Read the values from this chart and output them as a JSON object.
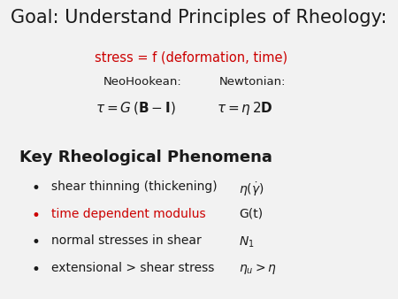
{
  "title": "Goal: Understand Principles of Rheology:",
  "title_fontsize": 15,
  "title_color": "#1a1a1a",
  "subtitle_red": "stress = f (deformation, time)",
  "subtitle_red_color": "#cc0000",
  "subtitle_red_fontsize": 10.5,
  "neohookean_label": "NeoHookean:",
  "newtonian_label": "Newtonian:",
  "section_title": "Key Rheological Phenomena",
  "section_title_fontsize": 13,
  "bullet_items": [
    "shear thinning (thickening)",
    "time dependent modulus",
    "normal stresses in shear",
    "extensional > shear stress"
  ],
  "bullet_colors": [
    "#1a1a1a",
    "#cc0000",
    "#1a1a1a",
    "#1a1a1a"
  ],
  "bullet_annotations": [
    "$\\eta(\\dot{\\gamma})$",
    "G(t)",
    "$N_1$",
    "$\\eta_u > \\eta$"
  ],
  "bg_color": "#f2f2f2",
  "text_color": "#1a1a1a",
  "label_fontsize": 9.5,
  "eq_fontsize": 11,
  "bullet_fontsize": 10,
  "annotation_fontsize": 10
}
